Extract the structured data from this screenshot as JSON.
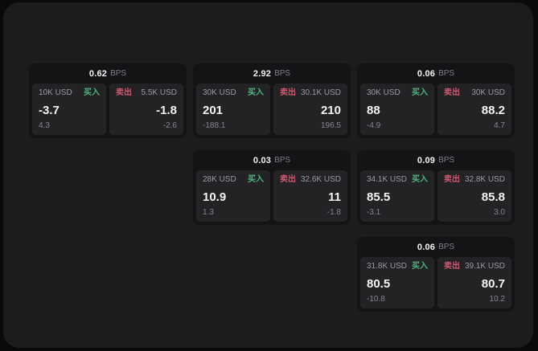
{
  "page": {
    "background": "#0a0a0a",
    "panel_background": "#1c1c1e"
  },
  "colors": {
    "buy_green": "#4db87c",
    "sell_red": "#d2566f"
  },
  "labels": {
    "bps_unit": "BPS",
    "buy": "买入",
    "sell": "卖出"
  },
  "cards": [
    {
      "bps": "0.62",
      "buy": {
        "amount": "10K USD",
        "value": "-3.7",
        "delta": "4.3"
      },
      "sell": {
        "amount": "5.5K USD",
        "value": "-1.8",
        "delta": "-2.6"
      }
    },
    {
      "bps": "2.92",
      "buy": {
        "amount": "30K USD",
        "value": "201",
        "delta": "-188.1"
      },
      "sell": {
        "amount": "30.1K USD",
        "value": "210",
        "delta": "196.5"
      }
    },
    {
      "bps": "0.06",
      "buy": {
        "amount": "30K USD",
        "value": "88",
        "delta": "-4.9"
      },
      "sell": {
        "amount": "30K USD",
        "value": "88.2",
        "delta": "4.7"
      }
    },
    {
      "bps": "0.03",
      "buy": {
        "amount": "28K USD",
        "value": "10.9",
        "delta": "1.3"
      },
      "sell": {
        "amount": "32.6K USD",
        "value": "11",
        "delta": "-1.8"
      }
    },
    {
      "bps": "0.09",
      "buy": {
        "amount": "34.1K USD",
        "value": "85.5",
        "delta": "-3.1"
      },
      "sell": {
        "amount": "32.8K USD",
        "value": "85.8",
        "delta": "3.0"
      }
    },
    {
      "bps": "0.06",
      "buy": {
        "amount": "31.8K USD",
        "value": "80.5",
        "delta": "-10.8"
      },
      "sell": {
        "amount": "39.1K USD",
        "value": "80.7",
        "delta": "10.2"
      }
    }
  ]
}
